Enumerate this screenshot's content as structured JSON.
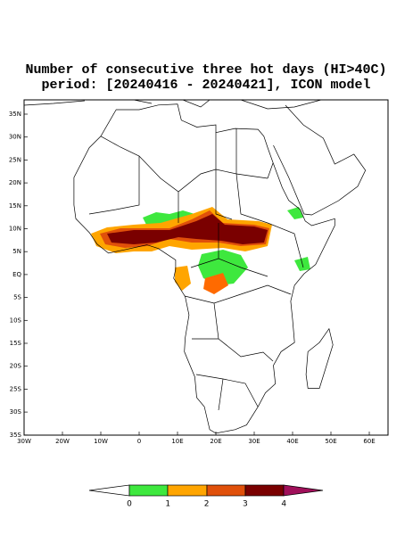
{
  "title": {
    "line1": "Number of consecutive three hot days (HI>40C)",
    "line2": "period: [20240416 - 20240421], ICON model"
  },
  "lat_labels": [
    "35N",
    "30N",
    "25N",
    "20N",
    "15N",
    "10N",
    "5N",
    "EQ",
    "5S",
    "10S",
    "15S",
    "20S",
    "25S",
    "30S",
    "35S"
  ],
  "lon_labels": [
    "30W",
    "20W",
    "10W",
    "0",
    "10E",
    "20E",
    "30E",
    "40E",
    "50E",
    "60E"
  ],
  "colorbar": {
    "labels": [
      "0",
      "1",
      "2",
      "3",
      "4"
    ]
  }
}
